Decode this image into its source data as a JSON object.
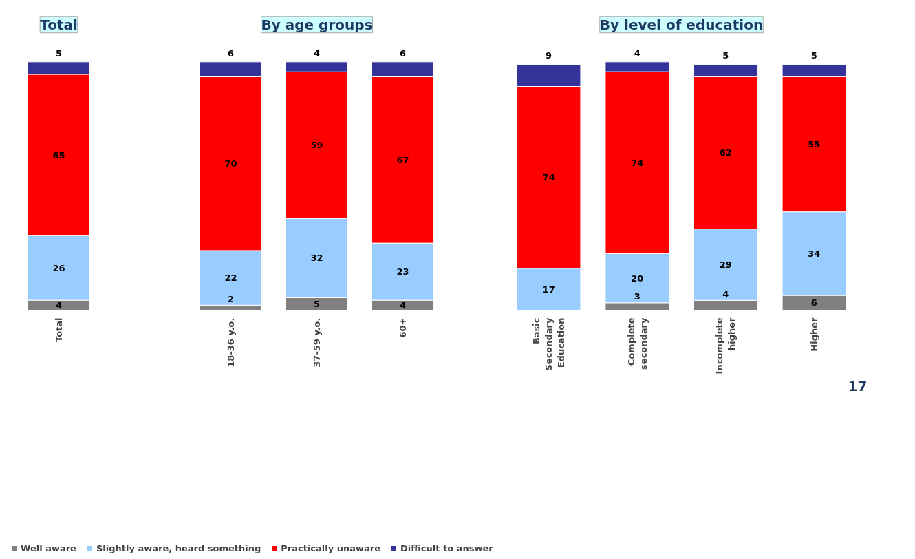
{
  "chart_data": [
    {
      "type": "bar",
      "stacked": true,
      "data_labels": true,
      "legend": "bottom",
      "categories": [
        "Total",
        null,
        "18-36 y.o.",
        "37-59 y.o.",
        "60+"
      ],
      "annotations": [
        "Total",
        "By age groups"
      ],
      "series": [
        {
          "name": "Well aware",
          "color": "#808080",
          "values": [
            4,
            null,
            2,
            5,
            4
          ]
        },
        {
          "name": "Slightly aware, heard something",
          "color": "#99ccff",
          "values": [
            26,
            null,
            22,
            32,
            23
          ]
        },
        {
          "name": "Practically unaware",
          "color": "#ff0000",
          "values": [
            65,
            null,
            70,
            59,
            67
          ]
        },
        {
          "name": "Difficult to answer",
          "color": "#333399",
          "values": [
            5,
            null,
            6,
            4,
            6
          ]
        }
      ]
    },
    {
      "type": "bar",
      "stacked": true,
      "data_labels": true,
      "categories": [
        "Basic Secondary Education",
        "Complete secondary",
        "Incomplete higher",
        "Higher"
      ],
      "annotations": [
        "By level of education",
        "17"
      ],
      "series": [
        {
          "color": "#808080",
          "values": [
            null,
            3,
            4,
            6
          ]
        },
        {
          "color": "#99ccff",
          "values": [
            17,
            20,
            29,
            34
          ]
        },
        {
          "color": "#ff0000",
          "values": [
            74,
            74,
            62,
            55
          ]
        },
        {
          "color": "#333399",
          "values": [
            9,
            4,
            5,
            5
          ]
        }
      ]
    }
  ]
}
